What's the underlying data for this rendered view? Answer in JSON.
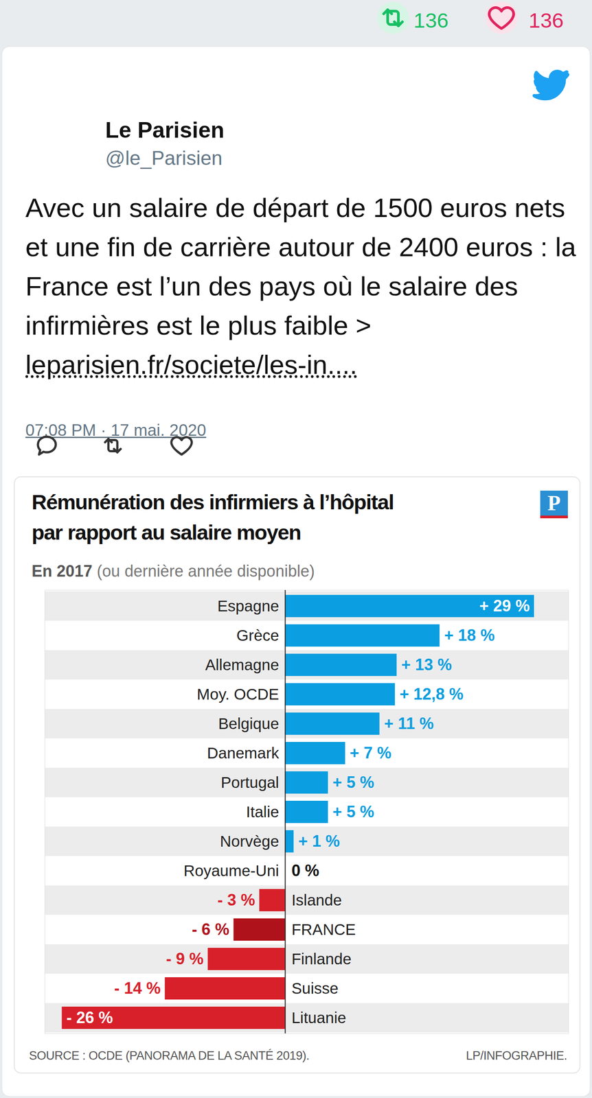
{
  "tweet": {
    "retweets": 136,
    "likes": 136,
    "author": "Le Parisien",
    "handle": "@le_Parisien",
    "text": "Avec un salaire de départ de 1500 euros nets et une fin de carrière autour de 2400 euros : la France est l’un des pays où le salaire des infirmières est le plus faible >",
    "link": "leparisien.fr/societe/les-in....",
    "timestamp": "07:08 PM · 17 mai. 2020"
  },
  "chart_data": {
    "type": "bar",
    "orientation": "horizontal",
    "title": "Rémunération des infirmiers à l’hôpital\npar rapport au salaire moyen",
    "subtitle": "En 2017 (ou dernière année disponible)",
    "source": "SOURCE : OCDE (PANORAMA DE LA SANTÉ 2019).",
    "credit": "LP/INFOGRAPHIE.",
    "logo": "P",
    "categories": [
      "Espagne",
      "Grèce",
      "Allemagne",
      "Moy. OCDE",
      "Belgique",
      "Danemark",
      "Portugal",
      "Italie",
      "Norvège",
      "Royaume-Uni",
      "Islande",
      "FRANCE",
      "Finlande",
      "Suisse",
      "Lituanie"
    ],
    "values": [
      29,
      18,
      13,
      12.8,
      11,
      7,
      5,
      5,
      1,
      0,
      -3,
      -6,
      -9,
      -14,
      -26
    ],
    "value_labels": [
      "+ 29 %",
      "+ 18 %",
      "+ 13 %",
      "+ 12,8 %",
      "+ 11 %",
      "+ 7 %",
      "+ 5 %",
      "+ 5 %",
      "+ 1 %",
      "0 %",
      "- 3 %",
      "- 6 %",
      "- 9 %",
      "- 14 %",
      "- 26 %"
    ],
    "colors": [
      "#0b9ee0",
      "#0b9ee0",
      "#0b9ee0",
      "#0b9ee0",
      "#0b9ee0",
      "#0b9ee0",
      "#0b9ee0",
      "#0b9ee0",
      "#0b9ee0",
      "#0b9ee0",
      "#d8202a",
      "#b0121b",
      "#d8202a",
      "#d8202a",
      "#d8202a"
    ],
    "xlim": [
      -28,
      33
    ],
    "xticks": [],
    "tick_labels": false,
    "data_labels": true
  }
}
